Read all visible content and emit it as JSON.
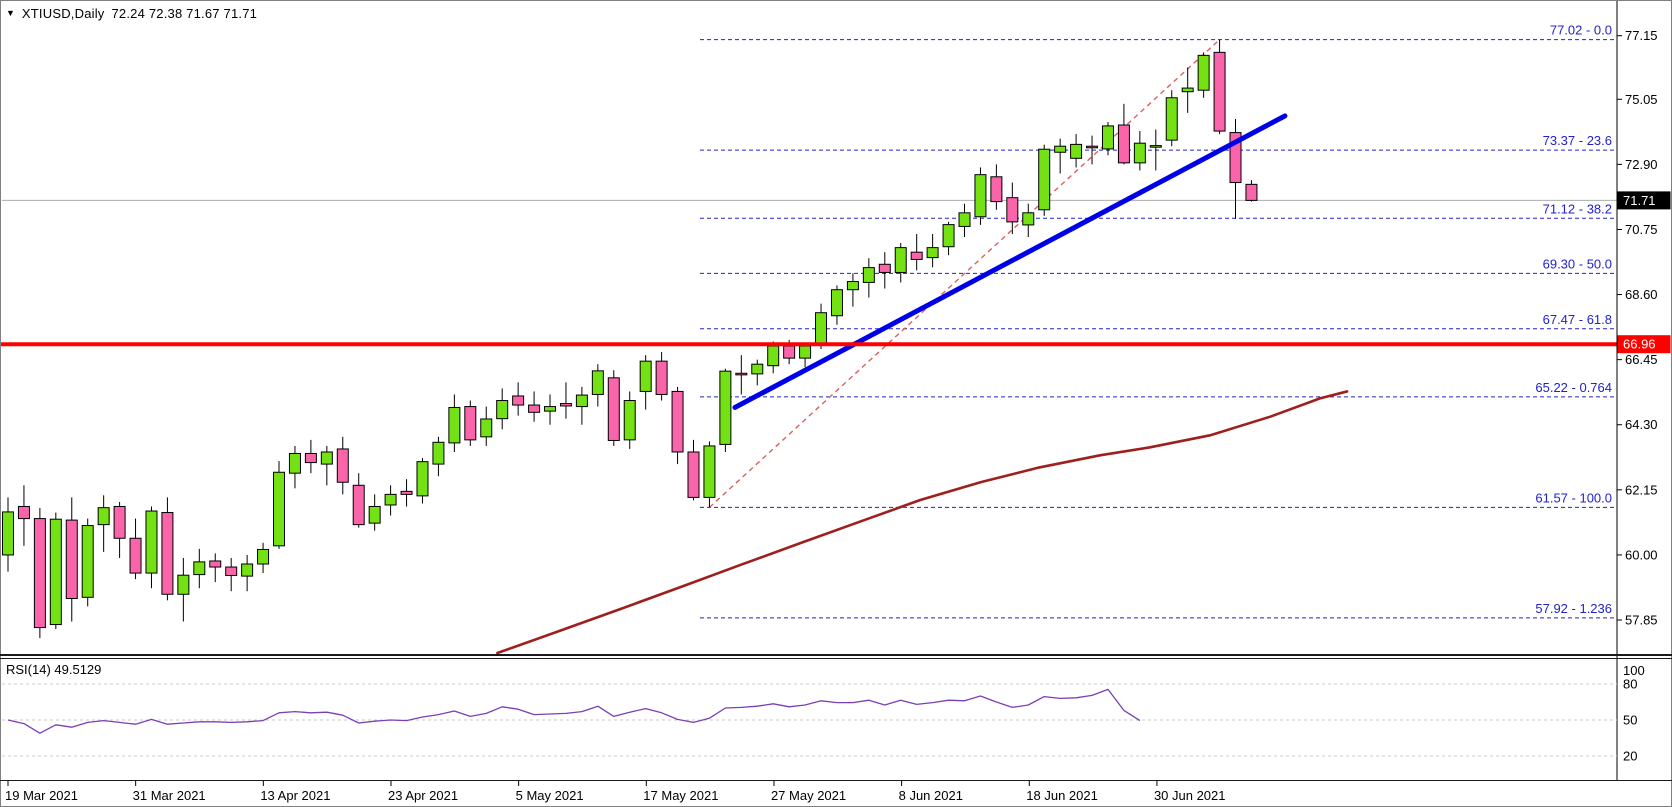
{
  "window": {
    "symbol_period": "XTIUSD,Daily",
    "ohlc_quote": "72.24 72.38 71.67 71.71",
    "dropdown_icon": "black-down-triangle"
  },
  "rsi_panel": {
    "label": "RSI(14) 49.5129",
    "period": 14,
    "current_value": 49.5129
  },
  "style": {
    "bull_color": "#74E114",
    "bear_color": "#FA64AA",
    "wick_color": "#000000",
    "fib_color": "#2222CC",
    "trendline_color": "#0000E8",
    "ma_color": "#9E1F1C",
    "fib_ray_color": "#DC6060",
    "hline_color": "#FF0000",
    "current_price_line_color": "#ABABAB",
    "current_price_chip_bg": "#000000",
    "hline_chip_bg": "#FF0000",
    "rsi_line_color": "#7B3FB5",
    "rsi_grid_color": "#C8C8C8",
    "axis_text_color": "#000000",
    "border_color": "#808080"
  },
  "chart_data": {
    "type": "candlestick",
    "symbol": "XTIUSD",
    "timeframe": "Daily",
    "title": "XTIUSD,Daily",
    "last_bar": {
      "open": 72.24,
      "high": 72.38,
      "low": 71.67,
      "close": 71.71
    },
    "current_price": 71.71,
    "horizontal_level": 66.96,
    "price_axis_ticks": [
      77.15,
      75.05,
      72.9,
      70.75,
      68.6,
      66.45,
      64.3,
      62.15,
      60.0,
      57.85
    ],
    "x_axis_labels": [
      "19 Mar 2021",
      "31 Mar 2021",
      "13 Apr 2021",
      "23 Apr 2021",
      "5 May 2021",
      "17 May 2021",
      "27 May 2021",
      "8 Jun 2021",
      "18 Jun 2021",
      "30 Jun 2021"
    ],
    "fibonacci_levels": [
      {
        "price": 77.02,
        "level": "0.0",
        "label": "77.02 - 0.0"
      },
      {
        "price": 73.37,
        "level": "23.6",
        "label": "73.37 - 23.6"
      },
      {
        "price": 71.12,
        "level": "38.2",
        "label": "71.12 - 38.2"
      },
      {
        "price": 69.3,
        "level": "50.0",
        "label": "69.30 - 50.0"
      },
      {
        "price": 67.47,
        "level": "61.8",
        "label": "67.47 - 61.8"
      },
      {
        "price": 65.22,
        "level": "0.764",
        "label": "65.22 - 0.764"
      },
      {
        "price": 61.57,
        "level": "100.0",
        "label": "61.57 - 100.0"
      },
      {
        "price": 57.92,
        "level": "1.236",
        "label": "57.92 - 1.236"
      }
    ],
    "blue_trendline": {
      "from": {
        "day": 45.6,
        "price": 64.87
      },
      "to": {
        "day": 80.1,
        "price": 74.5
      }
    },
    "fib_ray_dashed": {
      "from": {
        "day": 44,
        "price": 61.57
      },
      "to": {
        "day": 76,
        "price": 77.02
      }
    },
    "moving_average": [
      [
        30.7,
        56.76
      ],
      [
        34.6,
        57.49
      ],
      [
        38.4,
        58.21
      ],
      [
        42.2,
        58.94
      ],
      [
        45.9,
        59.66
      ],
      [
        49.7,
        60.39
      ],
      [
        53.5,
        61.11
      ],
      [
        57.2,
        61.81
      ],
      [
        61.0,
        62.4
      ],
      [
        64.7,
        62.89
      ],
      [
        68.5,
        63.29
      ],
      [
        71.6,
        63.55
      ],
      [
        75.4,
        63.95
      ],
      [
        79.2,
        64.57
      ],
      [
        82.3,
        65.17
      ],
      [
        84.0,
        65.4
      ]
    ],
    "candles_ohlc": [
      [
        60.0,
        61.9,
        59.45,
        61.42
      ],
      [
        61.6,
        62.3,
        60.3,
        61.2
      ],
      [
        61.2,
        61.55,
        57.25,
        57.6
      ],
      [
        57.7,
        61.4,
        57.55,
        61.18
      ],
      [
        61.15,
        61.9,
        57.8,
        58.56
      ],
      [
        58.6,
        61.2,
        58.3,
        60.97
      ],
      [
        61.0,
        61.97,
        60.1,
        61.56
      ],
      [
        61.6,
        61.75,
        59.9,
        60.55
      ],
      [
        60.55,
        61.2,
        59.2,
        59.4
      ],
      [
        59.4,
        61.6,
        58.9,
        61.45
      ],
      [
        61.4,
        61.9,
        58.5,
        58.7
      ],
      [
        58.7,
        59.9,
        57.8,
        59.33
      ],
      [
        59.35,
        60.2,
        58.9,
        59.77
      ],
      [
        59.8,
        60.05,
        59.1,
        59.6
      ],
      [
        59.6,
        59.9,
        58.8,
        59.32
      ],
      [
        59.3,
        60.0,
        58.8,
        59.7
      ],
      [
        59.7,
        60.4,
        59.4,
        60.18
      ],
      [
        60.3,
        63.1,
        60.2,
        62.73
      ],
      [
        62.7,
        63.6,
        62.2,
        63.35
      ],
      [
        63.35,
        63.8,
        62.7,
        63.05
      ],
      [
        63.0,
        63.6,
        62.3,
        63.4
      ],
      [
        63.5,
        63.9,
        62.0,
        62.4
      ],
      [
        62.3,
        62.7,
        60.9,
        61.0
      ],
      [
        61.05,
        62.0,
        60.8,
        61.6
      ],
      [
        61.65,
        62.3,
        61.3,
        62.0
      ],
      [
        62.1,
        62.5,
        61.6,
        62.0
      ],
      [
        61.95,
        63.2,
        61.7,
        63.08
      ],
      [
        63.0,
        63.9,
        62.6,
        63.72
      ],
      [
        63.7,
        65.3,
        63.4,
        64.87
      ],
      [
        64.9,
        65.1,
        63.6,
        63.8
      ],
      [
        63.9,
        64.9,
        63.6,
        64.49
      ],
      [
        64.5,
        65.5,
        64.15,
        65.1
      ],
      [
        65.25,
        65.7,
        64.6,
        64.95
      ],
      [
        64.95,
        65.4,
        64.4,
        64.71
      ],
      [
        64.75,
        65.3,
        64.3,
        64.9
      ],
      [
        65.0,
        65.7,
        64.5,
        64.92
      ],
      [
        64.9,
        65.55,
        64.3,
        65.28
      ],
      [
        65.3,
        66.3,
        64.9,
        66.08
      ],
      [
        65.85,
        66.1,
        63.6,
        63.78
      ],
      [
        63.8,
        65.4,
        63.5,
        65.1
      ],
      [
        65.4,
        66.6,
        64.8,
        66.4
      ],
      [
        66.4,
        66.7,
        65.1,
        65.3
      ],
      [
        65.4,
        65.55,
        63.0,
        63.4
      ],
      [
        63.4,
        63.8,
        61.8,
        61.9
      ],
      [
        61.9,
        63.75,
        61.57,
        63.6
      ],
      [
        63.65,
        66.15,
        63.4,
        66.07
      ],
      [
        66.0,
        66.6,
        65.3,
        65.95
      ],
      [
        65.98,
        66.45,
        65.6,
        66.3
      ],
      [
        66.25,
        67.05,
        66.0,
        66.9
      ],
      [
        66.9,
        67.1,
        66.3,
        66.5
      ],
      [
        66.5,
        67.0,
        66.2,
        66.9
      ],
      [
        67.0,
        68.3,
        66.8,
        68.0
      ],
      [
        67.9,
        68.9,
        67.6,
        68.76
      ],
      [
        68.76,
        69.3,
        68.2,
        69.03
      ],
      [
        69.0,
        69.8,
        68.5,
        69.49
      ],
      [
        69.6,
        70.0,
        68.8,
        69.33
      ],
      [
        69.33,
        70.3,
        69.0,
        70.15
      ],
      [
        70.0,
        70.6,
        69.4,
        69.76
      ],
      [
        69.82,
        70.6,
        69.5,
        70.15
      ],
      [
        70.18,
        71.0,
        69.9,
        70.91
      ],
      [
        70.85,
        71.6,
        70.5,
        71.3
      ],
      [
        71.17,
        72.8,
        70.9,
        72.56
      ],
      [
        72.49,
        72.9,
        71.4,
        71.67
      ],
      [
        71.8,
        72.3,
        70.6,
        71.0
      ],
      [
        70.9,
        71.6,
        70.5,
        71.3
      ],
      [
        71.4,
        73.55,
        71.2,
        73.4
      ],
      [
        73.3,
        73.75,
        72.6,
        73.5
      ],
      [
        73.1,
        73.9,
        72.8,
        73.56
      ],
      [
        73.5,
        73.85,
        72.9,
        73.47
      ],
      [
        73.41,
        74.3,
        73.2,
        74.17
      ],
      [
        74.2,
        74.9,
        72.9,
        72.95
      ],
      [
        72.95,
        74.0,
        72.7,
        73.6
      ],
      [
        73.5,
        74.05,
        72.7,
        73.52
      ],
      [
        73.7,
        75.35,
        73.5,
        75.1
      ],
      [
        75.3,
        76.1,
        74.6,
        75.42
      ],
      [
        75.35,
        76.6,
        75.1,
        76.5
      ],
      [
        76.6,
        77.02,
        73.9,
        74.0
      ],
      [
        73.95,
        74.4,
        71.1,
        72.3
      ],
      [
        72.24,
        72.38,
        71.67,
        71.71
      ]
    ],
    "rsi": {
      "label": "RSI(14) 49.5129",
      "levels": [
        80,
        50,
        20
      ],
      "axis_labels": [
        100,
        80,
        50,
        20
      ],
      "values": [
        50,
        47,
        39,
        46,
        44,
        48,
        49.5,
        48,
        46.5,
        50.5,
        46.5,
        47.5,
        48.5,
        48.5,
        48,
        48.5,
        49.5,
        56,
        57,
        56,
        56.5,
        54,
        47.5,
        49,
        50,
        49.5,
        52.5,
        54.5,
        57.5,
        53,
        55.5,
        61,
        59,
        54.5,
        55,
        55.5,
        57,
        61.5,
        53,
        56.5,
        59.5,
        56,
        50.5,
        48,
        51.5,
        60,
        60.5,
        61.5,
        63.5,
        61,
        62.5,
        66,
        64.5,
        64.5,
        66.5,
        62.5,
        66.5,
        63,
        64.5,
        66.5,
        66,
        70,
        65,
        60.5,
        62.5,
        69.5,
        68,
        68.5,
        70.5,
        75.5,
        58,
        49.5
      ]
    }
  }
}
